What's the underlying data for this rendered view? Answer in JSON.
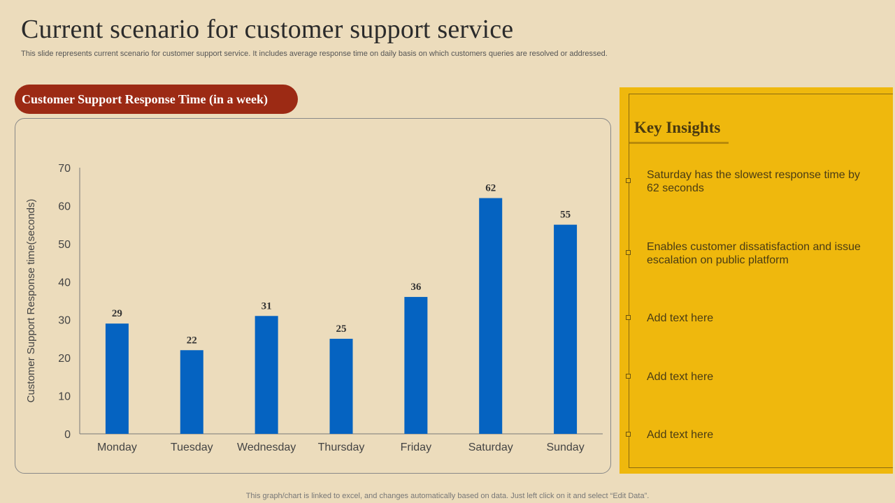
{
  "page": {
    "title": "Current scenario for customer support service",
    "subtitle": "This slide represents current scenario for customer support service. It includes average response time on daily basis on which customers queries are resolved or addressed.",
    "pill_label": "Customer Support Response Time (in a week)",
    "footer": "This graph/chart is linked to excel,  and changes automatically based on data. Just left click on it and select “Edit Data”."
  },
  "chart_data": {
    "type": "bar",
    "title": "Customer Support Response Time (in a week)",
    "categories": [
      "Monday",
      "Tuesday",
      "Wednesday",
      "Thursday",
      "Friday",
      "Saturday",
      "Sunday"
    ],
    "values": [
      29,
      22,
      31,
      25,
      36,
      62,
      55
    ],
    "xlabel": "",
    "ylabel": "Customer Support Response time(seconds)",
    "ylim": [
      0,
      70
    ],
    "yticks": [
      0,
      10,
      20,
      30,
      40,
      50,
      60,
      70
    ],
    "grid": false,
    "bar_color": "#0563c1"
  },
  "insights": {
    "title": "Key Insights",
    "items": [
      "Saturday has the slowest response time by 62 seconds",
      "Enables customer dissatisfaction and issue escalation on public platform",
      "Add text here",
      "Add text here",
      "Add text here"
    ]
  },
  "colors": {
    "background": "#ecdcbc",
    "pill": "#9c2a14",
    "panel": "#efb80d"
  }
}
